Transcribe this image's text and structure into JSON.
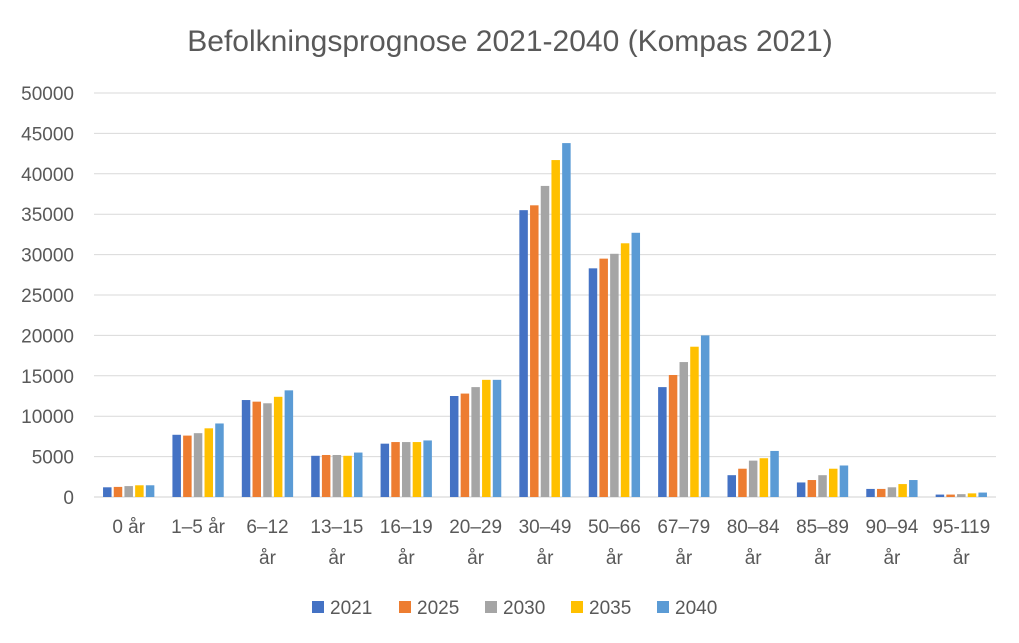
{
  "chart_data": {
    "type": "bar",
    "title": "Befolkningsprognose 2021-2040 (Kompas 2021)",
    "xlabel": "",
    "ylabel": "",
    "ylim": [
      0,
      50000
    ],
    "yticks": [
      "0",
      "5000",
      "10000",
      "15000",
      "20000",
      "25000",
      "30000",
      "35000",
      "40000",
      "45000",
      "50000"
    ],
    "grid": true,
    "legend_position": "bottom",
    "categories": [
      [
        "0 år"
      ],
      [
        "1–5 år"
      ],
      [
        "6–12",
        "år"
      ],
      [
        "13–15",
        "år"
      ],
      [
        "16–19",
        "år"
      ],
      [
        "20–29",
        "år"
      ],
      [
        "30–49",
        "år"
      ],
      [
        "50–66",
        "år"
      ],
      [
        "67–79",
        "år"
      ],
      [
        "80–84",
        "år"
      ],
      [
        "85–89",
        "år"
      ],
      [
        "90–94",
        "år"
      ],
      [
        "95-119",
        "år"
      ]
    ],
    "series": [
      {
        "name": "2021",
        "color": "#4472C4",
        "values": [
          1200,
          7700,
          12000,
          5100,
          6600,
          12500,
          35500,
          28300,
          13600,
          2700,
          1800,
          1000,
          300
        ]
      },
      {
        "name": "2025",
        "color": "#ED7D31",
        "values": [
          1250,
          7600,
          11800,
          5200,
          6800,
          12800,
          36100,
          29500,
          15100,
          3500,
          2100,
          1000,
          300
        ]
      },
      {
        "name": "2030",
        "color": "#A5A5A5",
        "values": [
          1350,
          7900,
          11600,
          5200,
          6800,
          13600,
          38500,
          30100,
          16700,
          4500,
          2700,
          1200,
          350
        ]
      },
      {
        "name": "2035",
        "color": "#FFC000",
        "values": [
          1450,
          8500,
          12400,
          5100,
          6800,
          14500,
          41700,
          31400,
          18600,
          4800,
          3500,
          1600,
          450
        ]
      },
      {
        "name": "2040",
        "color": "#5B9BD5",
        "values": [
          1450,
          9100,
          13200,
          5500,
          7000,
          14500,
          43800,
          32700,
          20000,
          5700,
          3900,
          2100,
          550
        ]
      }
    ]
  }
}
